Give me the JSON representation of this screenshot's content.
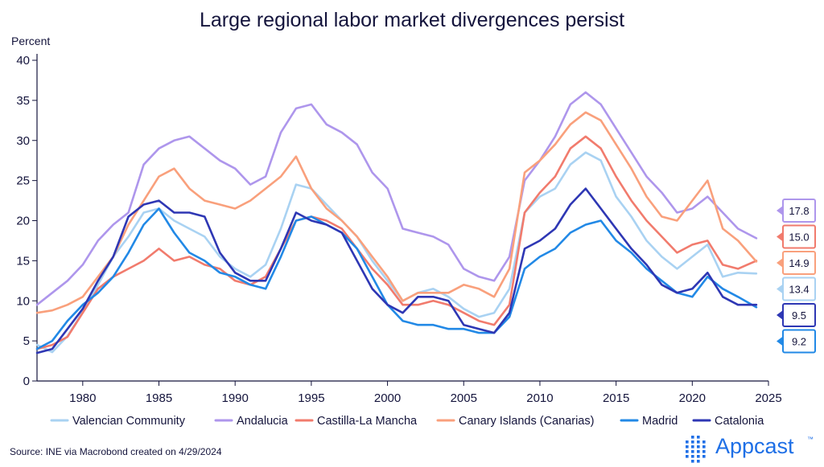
{
  "chart_data": {
    "type": "line",
    "title": "Large regional labor market divergences persist",
    "ylabel": "Percent",
    "xlabel": "",
    "xlim": [
      1977,
      2025
    ],
    "ylim": [
      0,
      40
    ],
    "x_ticks": [
      1980,
      1985,
      1990,
      1995,
      2000,
      2005,
      2010,
      2015,
      2020,
      2025
    ],
    "y_ticks": [
      0,
      5,
      10,
      15,
      20,
      25,
      30,
      35,
      40
    ],
    "grid": false,
    "legend_position": "bottom",
    "series": [
      {
        "name": "Valencian Community",
        "color": "#a9d2f2",
        "end_label": "13.4",
        "points": [
          [
            1977,
            4.5
          ],
          [
            1978,
            3.6
          ],
          [
            1979,
            5.6
          ],
          [
            1980,
            8.6
          ],
          [
            1981,
            12.0
          ],
          [
            1982,
            15.5
          ],
          [
            1983,
            18.0
          ],
          [
            1984,
            21.0
          ],
          [
            1985,
            21.5
          ],
          [
            1986,
            20.0
          ],
          [
            1987,
            19.0
          ],
          [
            1988,
            18.0
          ],
          [
            1989,
            15.5
          ],
          [
            1990,
            14.0
          ],
          [
            1991,
            13.0
          ],
          [
            1992,
            14.5
          ],
          [
            1993,
            19.0
          ],
          [
            1994,
            24.5
          ],
          [
            1995,
            24.0
          ],
          [
            1996,
            22.0
          ],
          [
            1997,
            20.0
          ],
          [
            1998,
            18.0
          ],
          [
            1999,
            15.0
          ],
          [
            2000,
            12.5
          ],
          [
            2001,
            10.0
          ],
          [
            2002,
            11.0
          ],
          [
            2003,
            11.5
          ],
          [
            2004,
            10.5
          ],
          [
            2005,
            9.0
          ],
          [
            2006,
            8.0
          ],
          [
            2007,
            8.5
          ],
          [
            2008,
            11.5
          ],
          [
            2009,
            21.0
          ],
          [
            2010,
            23.0
          ],
          [
            2011,
            24.0
          ],
          [
            2012,
            27.0
          ],
          [
            2013,
            28.5
          ],
          [
            2014,
            27.5
          ],
          [
            2015,
            23.0
          ],
          [
            2016,
            20.5
          ],
          [
            2017,
            17.5
          ],
          [
            2018,
            15.5
          ],
          [
            2019,
            14.0
          ],
          [
            2020,
            15.5
          ],
          [
            2021,
            17.0
          ],
          [
            2022,
            13.0
          ],
          [
            2023,
            13.5
          ],
          [
            2024.2,
            13.4
          ]
        ]
      },
      {
        "name": "Andalucia",
        "color": "#ae96ec",
        "end_label": "17.8",
        "points": [
          [
            1977,
            9.5
          ],
          [
            1978,
            11.0
          ],
          [
            1979,
            12.5
          ],
          [
            1980,
            14.5
          ],
          [
            1981,
            17.5
          ],
          [
            1982,
            19.5
          ],
          [
            1983,
            21.0
          ],
          [
            1984,
            27.0
          ],
          [
            1985,
            29.0
          ],
          [
            1986,
            30.0
          ],
          [
            1987,
            30.5
          ],
          [
            1988,
            29.0
          ],
          [
            1989,
            27.5
          ],
          [
            1990,
            26.5
          ],
          [
            1991,
            24.5
          ],
          [
            1992,
            25.5
          ],
          [
            1993,
            31.0
          ],
          [
            1994,
            34.0
          ],
          [
            1995,
            34.5
          ],
          [
            1996,
            32.0
          ],
          [
            1997,
            31.0
          ],
          [
            1998,
            29.5
          ],
          [
            1999,
            26.0
          ],
          [
            2000,
            24.0
          ],
          [
            2001,
            19.0
          ],
          [
            2002,
            18.5
          ],
          [
            2003,
            18.0
          ],
          [
            2004,
            17.0
          ],
          [
            2005,
            14.0
          ],
          [
            2006,
            13.0
          ],
          [
            2007,
            12.5
          ],
          [
            2008,
            15.5
          ],
          [
            2009,
            25.0
          ],
          [
            2010,
            27.5
          ],
          [
            2011,
            30.5
          ],
          [
            2012,
            34.5
          ],
          [
            2013,
            36.0
          ],
          [
            2014,
            34.5
          ],
          [
            2015,
            31.5
          ],
          [
            2016,
            28.5
          ],
          [
            2017,
            25.5
          ],
          [
            2018,
            23.5
          ],
          [
            2019,
            21.0
          ],
          [
            2020,
            21.5
          ],
          [
            2021,
            23.0
          ],
          [
            2022,
            21.0
          ],
          [
            2023,
            19.0
          ],
          [
            2024.2,
            17.8
          ]
        ]
      },
      {
        "name": "Castilla-La Mancha",
        "color": "#f17b6d",
        "end_label": "15.0",
        "points": [
          [
            1977,
            4.0
          ],
          [
            1978,
            4.5
          ],
          [
            1979,
            5.5
          ],
          [
            1980,
            8.5
          ],
          [
            1981,
            11.5
          ],
          [
            1982,
            13.0
          ],
          [
            1983,
            14.0
          ],
          [
            1984,
            15.0
          ],
          [
            1985,
            16.5
          ],
          [
            1986,
            15.0
          ],
          [
            1987,
            15.5
          ],
          [
            1988,
            14.5
          ],
          [
            1989,
            14.0
          ],
          [
            1990,
            12.5
          ],
          [
            1991,
            12.0
          ],
          [
            1992,
            13.0
          ],
          [
            1993,
            16.5
          ],
          [
            1994,
            20.0
          ],
          [
            1995,
            20.5
          ],
          [
            1996,
            20.0
          ],
          [
            1997,
            19.0
          ],
          [
            1998,
            16.5
          ],
          [
            1999,
            14.0
          ],
          [
            2000,
            12.0
          ],
          [
            2001,
            9.5
          ],
          [
            2002,
            9.5
          ],
          [
            2003,
            10.0
          ],
          [
            2004,
            9.5
          ],
          [
            2005,
            8.5
          ],
          [
            2006,
            7.5
          ],
          [
            2007,
            7.0
          ],
          [
            2008,
            9.5
          ],
          [
            2009,
            21.0
          ],
          [
            2010,
            23.5
          ],
          [
            2011,
            25.5
          ],
          [
            2012,
            29.0
          ],
          [
            2013,
            30.5
          ],
          [
            2014,
            29.0
          ],
          [
            2015,
            25.5
          ],
          [
            2016,
            22.5
          ],
          [
            2017,
            20.0
          ],
          [
            2018,
            18.0
          ],
          [
            2019,
            16.0
          ],
          [
            2020,
            17.0
          ],
          [
            2021,
            17.5
          ],
          [
            2022,
            14.5
          ],
          [
            2023,
            14.0
          ],
          [
            2024.2,
            15.0
          ]
        ]
      },
      {
        "name": "Canary Islands (Canarias)",
        "color": "#f9a07c",
        "end_label": "14.9",
        "points": [
          [
            1977,
            8.5
          ],
          [
            1978,
            8.8
          ],
          [
            1979,
            9.5
          ],
          [
            1980,
            10.5
          ],
          [
            1981,
            13.0
          ],
          [
            1982,
            15.5
          ],
          [
            1983,
            19.5
          ],
          [
            1984,
            22.5
          ],
          [
            1985,
            25.5
          ],
          [
            1986,
            26.5
          ],
          [
            1987,
            24.0
          ],
          [
            1988,
            22.5
          ],
          [
            1989,
            22.0
          ],
          [
            1990,
            21.5
          ],
          [
            1991,
            22.5
          ],
          [
            1992,
            24.0
          ],
          [
            1993,
            25.5
          ],
          [
            1994,
            28.0
          ],
          [
            1995,
            24.0
          ],
          [
            1996,
            21.5
          ],
          [
            1997,
            20.0
          ],
          [
            1998,
            18.0
          ],
          [
            1999,
            15.5
          ],
          [
            2000,
            13.0
          ],
          [
            2001,
            10.0
          ],
          [
            2002,
            11.0
          ],
          [
            2003,
            11.0
          ],
          [
            2004,
            11.0
          ],
          [
            2005,
            12.0
          ],
          [
            2006,
            11.5
          ],
          [
            2007,
            10.5
          ],
          [
            2008,
            14.0
          ],
          [
            2009,
            26.0
          ],
          [
            2010,
            27.5
          ],
          [
            2011,
            29.5
          ],
          [
            2012,
            32.0
          ],
          [
            2013,
            33.5
          ],
          [
            2014,
            32.5
          ],
          [
            2015,
            29.5
          ],
          [
            2016,
            26.5
          ],
          [
            2017,
            23.0
          ],
          [
            2018,
            20.5
          ],
          [
            2019,
            20.0
          ],
          [
            2020,
            22.5
          ],
          [
            2021,
            25.0
          ],
          [
            2022,
            19.0
          ],
          [
            2023,
            17.5
          ],
          [
            2024.2,
            14.9
          ]
        ]
      },
      {
        "name": "Madrid",
        "color": "#2289e6",
        "end_label": "9.2",
        "points": [
          [
            1977,
            4.0
          ],
          [
            1978,
            5.0
          ],
          [
            1979,
            7.5
          ],
          [
            1980,
            9.5
          ],
          [
            1981,
            11.0
          ],
          [
            1982,
            13.0
          ],
          [
            1983,
            16.0
          ],
          [
            1984,
            19.5
          ],
          [
            1985,
            21.5
          ],
          [
            1986,
            18.5
          ],
          [
            1987,
            16.0
          ],
          [
            1988,
            15.0
          ],
          [
            1989,
            13.5
          ],
          [
            1990,
            13.0
          ],
          [
            1991,
            12.0
          ],
          [
            1992,
            11.5
          ],
          [
            1993,
            15.5
          ],
          [
            1994,
            20.0
          ],
          [
            1995,
            20.5
          ],
          [
            1996,
            19.5
          ],
          [
            1997,
            18.5
          ],
          [
            1998,
            16.5
          ],
          [
            1999,
            13.0
          ],
          [
            2000,
            9.5
          ],
          [
            2001,
            7.5
          ],
          [
            2002,
            7.0
          ],
          [
            2003,
            7.0
          ],
          [
            2004,
            6.5
          ],
          [
            2005,
            6.5
          ],
          [
            2006,
            6.0
          ],
          [
            2007,
            6.0
          ],
          [
            2008,
            8.0
          ],
          [
            2009,
            14.0
          ],
          [
            2010,
            15.5
          ],
          [
            2011,
            16.5
          ],
          [
            2012,
            18.5
          ],
          [
            2013,
            19.5
          ],
          [
            2014,
            20.0
          ],
          [
            2015,
            17.5
          ],
          [
            2016,
            16.0
          ],
          [
            2017,
            14.0
          ],
          [
            2018,
            12.5
          ],
          [
            2019,
            11.0
          ],
          [
            2020,
            10.5
          ],
          [
            2021,
            13.0
          ],
          [
            2022,
            11.5
          ],
          [
            2023,
            10.5
          ],
          [
            2024.2,
            9.2
          ]
        ]
      },
      {
        "name": "Catalonia",
        "color": "#2e37b4",
        "end_label": "9.5",
        "points": [
          [
            1977,
            3.5
          ],
          [
            1978,
            4.0
          ],
          [
            1979,
            6.5
          ],
          [
            1980,
            9.0
          ],
          [
            1981,
            12.5
          ],
          [
            1982,
            15.5
          ],
          [
            1983,
            20.5
          ],
          [
            1984,
            22.0
          ],
          [
            1985,
            22.5
          ],
          [
            1986,
            21.0
          ],
          [
            1987,
            21.0
          ],
          [
            1988,
            20.5
          ],
          [
            1989,
            16.0
          ],
          [
            1990,
            13.5
          ],
          [
            1991,
            12.5
          ],
          [
            1992,
            12.5
          ],
          [
            1993,
            16.5
          ],
          [
            1994,
            21.0
          ],
          [
            1995,
            20.0
          ],
          [
            1996,
            19.5
          ],
          [
            1997,
            18.5
          ],
          [
            1998,
            15.0
          ],
          [
            1999,
            11.5
          ],
          [
            2000,
            9.5
          ],
          [
            2001,
            8.5
          ],
          [
            2002,
            10.5
          ],
          [
            2003,
            10.5
          ],
          [
            2004,
            10.0
          ],
          [
            2005,
            7.0
          ],
          [
            2006,
            6.5
          ],
          [
            2007,
            6.0
          ],
          [
            2008,
            8.5
          ],
          [
            2009,
            16.5
          ],
          [
            2010,
            17.5
          ],
          [
            2011,
            19.0
          ],
          [
            2012,
            22.0
          ],
          [
            2013,
            24.0
          ],
          [
            2014,
            21.5
          ],
          [
            2015,
            19.0
          ],
          [
            2016,
            16.5
          ],
          [
            2017,
            14.5
          ],
          [
            2018,
            12.0
          ],
          [
            2019,
            11.0
          ],
          [
            2020,
            11.5
          ],
          [
            2021,
            13.5
          ],
          [
            2022,
            10.5
          ],
          [
            2023,
            9.5
          ],
          [
            2024.2,
            9.5
          ]
        ]
      }
    ]
  },
  "footer": {
    "source": "Source: INE via Macrobond created on 4/29/2024",
    "brand": "Appcast",
    "brand_mark": "™"
  },
  "colors": {
    "text": "#14143c",
    "axis": "#14143c",
    "brand": "#1e6fe6"
  }
}
